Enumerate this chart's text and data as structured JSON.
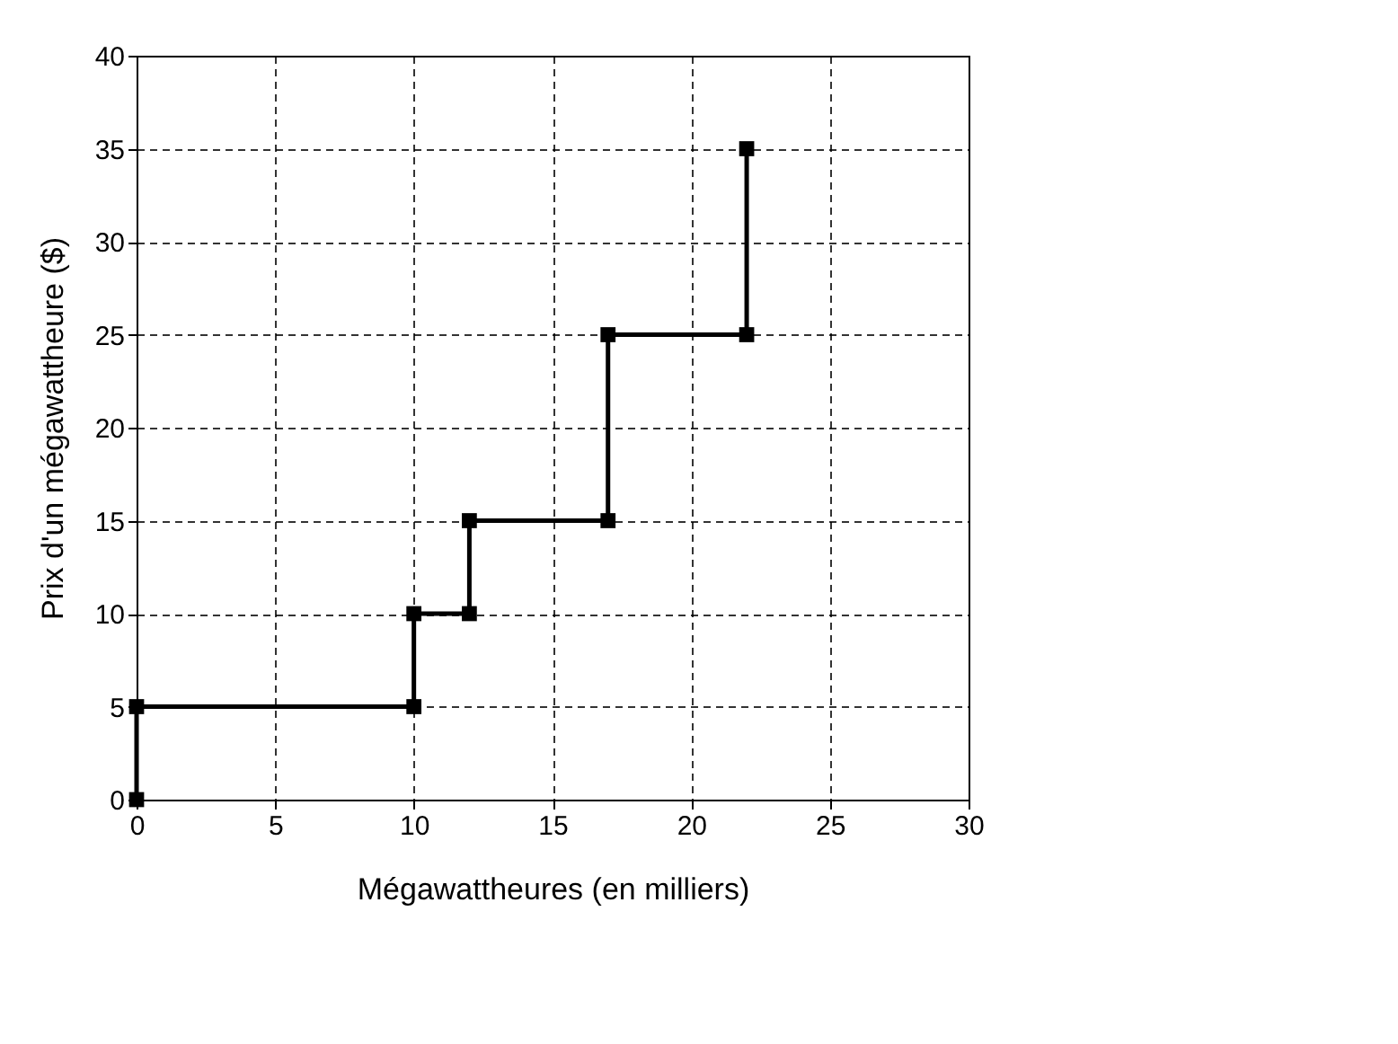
{
  "chart_data": {
    "type": "line",
    "xlabel": "Mégawattheures (en milliers)",
    "ylabel": "Prix d'un mégawattheure ($)",
    "x": [
      0,
      0,
      10,
      10,
      12,
      12,
      17,
      17,
      22,
      22
    ],
    "series": [
      {
        "color": "#000000",
        "values": [
          0,
          5,
          5,
          10,
          10,
          15,
          15,
          25,
          25,
          35
        ]
      }
    ],
    "xlim": [
      0,
      30
    ],
    "xticks": [
      0,
      5,
      10,
      15,
      20,
      25,
      30
    ],
    "ylim": [
      0,
      40
    ],
    "yticks": [
      0,
      5,
      10,
      15,
      20,
      25,
      30,
      35,
      40
    ],
    "grid": true,
    "marker": "square",
    "line_style": "solid"
  }
}
